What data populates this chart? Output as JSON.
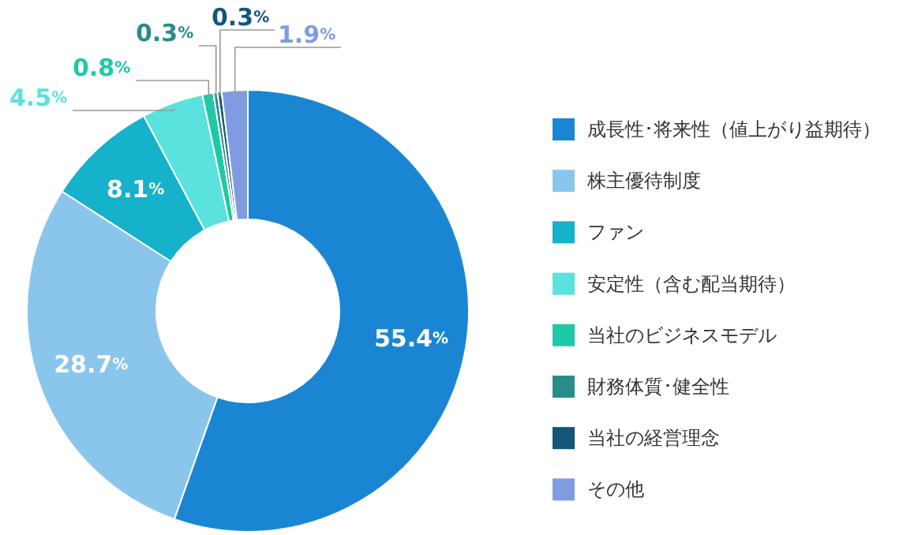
{
  "chart_data": {
    "type": "donut",
    "categories": [
      "成長性･将来性（値上がり益期待）",
      "株主優待制度",
      "ファン",
      "安定性（含む配当期待）",
      "当社のビジネスモデル",
      "財務体質･健全性",
      "当社の経営理念",
      "その他"
    ],
    "values": [
      55.4,
      28.7,
      8.1,
      4.5,
      0.8,
      0.3,
      0.3,
      1.9
    ],
    "value_labels": [
      "55.4%",
      "28.7%",
      "8.1%",
      "4.5%",
      "0.8%",
      "0.3%",
      "0.3%",
      "1.9%"
    ],
    "colors": [
      "#1a86d3",
      "#8ac6ec",
      "#16b1cb",
      "#5ae2df",
      "#1dc9a6",
      "#2a8c88",
      "#14557a",
      "#7f9ce0"
    ],
    "legend": "right"
  }
}
